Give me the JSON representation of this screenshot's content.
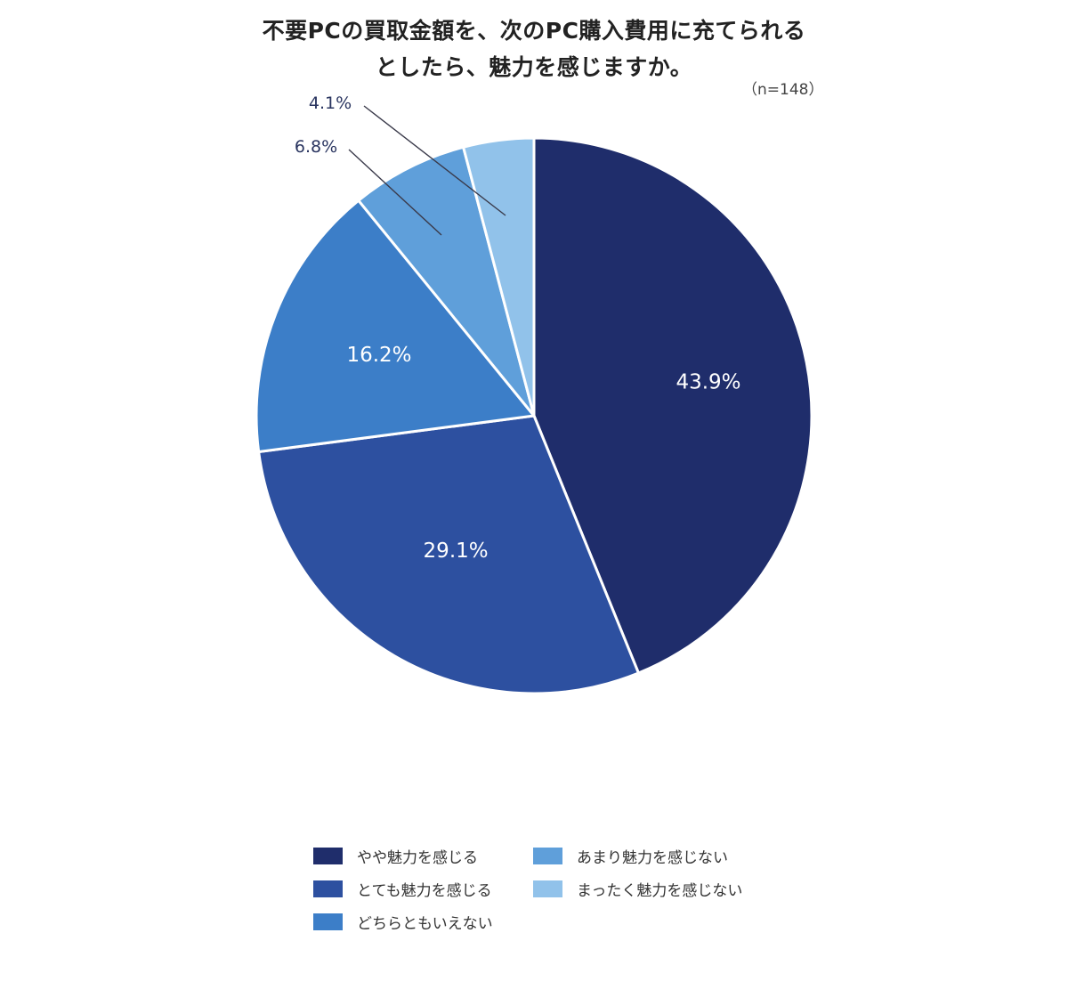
{
  "chart_data": {
    "type": "pie",
    "title_lines": [
      "不要PCの買取金額を、次のPC購入費用に充てられる",
      "としたら、魅力を感じますか。"
    ],
    "sample_size": "（n=148）",
    "slices": [
      {
        "name": "やや魅力を感じる",
        "value": 43.9,
        "label": "43.9%",
        "color": "#1f2d6b"
      },
      {
        "name": "とても魅力を感じる",
        "value": 29.1,
        "label": "29.1%",
        "color": "#2d50a0"
      },
      {
        "name": "どちらともいえない",
        "value": 16.2,
        "label": "16.2%",
        "color": "#3c7ec8"
      },
      {
        "name": "あまり魅力を感じない",
        "value": 6.8,
        "label": "6.8%",
        "color": "#5f9fda"
      },
      {
        "name": "まったく魅力を感じない",
        "value": 4.1,
        "label": "4.1%",
        "color": "#91c2ea"
      }
    ],
    "start_angle": "12 o'clock",
    "direction": "clockwise",
    "legend_position": "bottom"
  }
}
